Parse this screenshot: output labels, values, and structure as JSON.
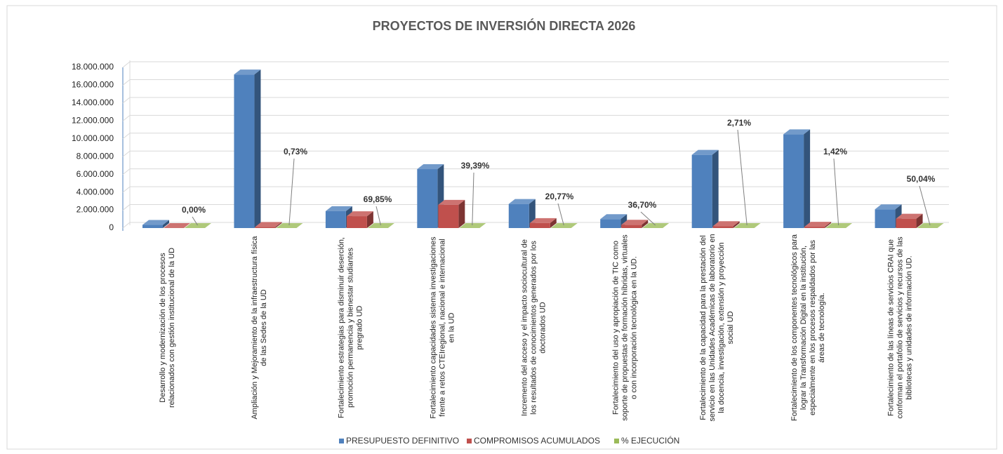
{
  "chart_data": {
    "type": "bar3d",
    "title": "PROYECTOS DE INVERSIÓN DIRECTA 2026",
    "categories": [
      "Desarrollo y modernización de los procesos relacionados con gestión institucional de la UD",
      "Ampliación y Mejoramiento de la infraestructura física de las Sedes de la UD",
      "Fortalecimiento estrategias para disminuir deserción, promoción permanencia y bienestar studiantes pregrado UD",
      "Fortalecimiento capacidades sistema investigaciones frente a retos CTEIregional, nacional e internacional en la UD",
      "Incremento del acceso y el impacto sociocultural de los resultados de conocimientos generados por los doctorados UD",
      "Fortalecimiento del uso y apropiación de TIC como soporte de propuestas de formación híbridas, virtuales o con incorporación tecnológica en la UD.",
      "Fortalecimiento de la capacidad para la prestación del servicio en las Unidades Académicas de laboratorio en la docencia, investigación, extensión y proyección social UD",
      "Fortalecimiento de los componentes tecnológicos para lograr la Transformación Digital en la institución, especialmente en los procesos respaldados por las áreas de tecnología.",
      "Fortalecimiento de las líneas de servicios CRAI que conforman el portafolio de servicios y recursos de las bibliotecas y unidades de información UD."
    ],
    "series": [
      {
        "name": "PRESUPUESTO DEFINITIVO",
        "color": "#4f81bd",
        "values": [
          350000,
          17200000,
          1900000,
          6600000,
          2700000,
          1000000,
          8200000,
          10500000,
          2100000
        ]
      },
      {
        "name": "COMPROMISOS ACUMULADOS",
        "color": "#c0504d",
        "values": [
          0,
          125000,
          1330000,
          2600000,
          560000,
          370000,
          220000,
          150000,
          1050000
        ]
      },
      {
        "name": "% EJECUCIÓN",
        "color": "#9bbb59",
        "values": [
          0,
          0.73,
          69.85,
          39.39,
          20.77,
          36.7,
          2.71,
          1.42,
          50.04
        ],
        "value_labels": [
          "0,00%",
          "0,73%",
          "69,85%",
          "39,39%",
          "20,77%",
          "36,70%",
          "2,71%",
          "1,42%",
          "50,04%"
        ]
      }
    ],
    "ylim": [
      0,
      18000000
    ],
    "yticks": [
      0,
      {
        "value": 2000000,
        "label": "2.000.000"
      },
      {
        "value": 4000000,
        "label": "4.000.000"
      },
      {
        "value": 6000000,
        "label": "6.000.000"
      },
      {
        "value": 8000000,
        "label": "8.000.000"
      },
      {
        "value": 10000000,
        "label": "10.000.000"
      },
      {
        "value": 12000000,
        "label": "12.000.000"
      },
      {
        "value": 14000000,
        "label": "14.000.000"
      },
      {
        "value": 16000000,
        "label": "16.000.000"
      },
      {
        "value": 18000000,
        "label": "18.000.000"
      }
    ],
    "grid": true,
    "legend": "bottom"
  }
}
